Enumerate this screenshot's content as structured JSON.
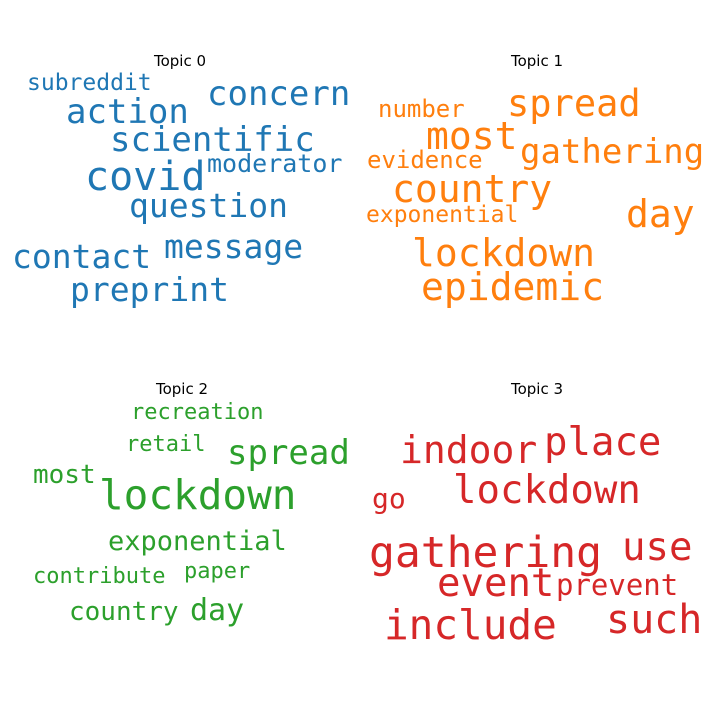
{
  "figure": {
    "topics": [
      {
        "title": "Topic 0",
        "color": "#1f77b4",
        "words": [
          "subreddit",
          "concern",
          "action",
          "scientific",
          "moderator",
          "covid",
          "question",
          "message",
          "contact",
          "preprint"
        ]
      },
      {
        "title": "Topic 1",
        "color": "#ff7f0e",
        "words": [
          "number",
          "spread",
          "most",
          "gathering",
          "evidence",
          "country",
          "day",
          "exponential",
          "lockdown",
          "epidemic"
        ]
      },
      {
        "title": "Topic 2",
        "color": "#2ca02c",
        "words": [
          "recreation",
          "retail",
          "spread",
          "most",
          "lockdown",
          "exponential",
          "contribute",
          "paper",
          "country",
          "day"
        ]
      },
      {
        "title": "Topic 3",
        "color": "#d62728",
        "words": [
          "indoor",
          "place",
          "go",
          "lockdown",
          "gathering",
          "use",
          "event",
          "prevent",
          "include",
          "such"
        ]
      }
    ]
  }
}
